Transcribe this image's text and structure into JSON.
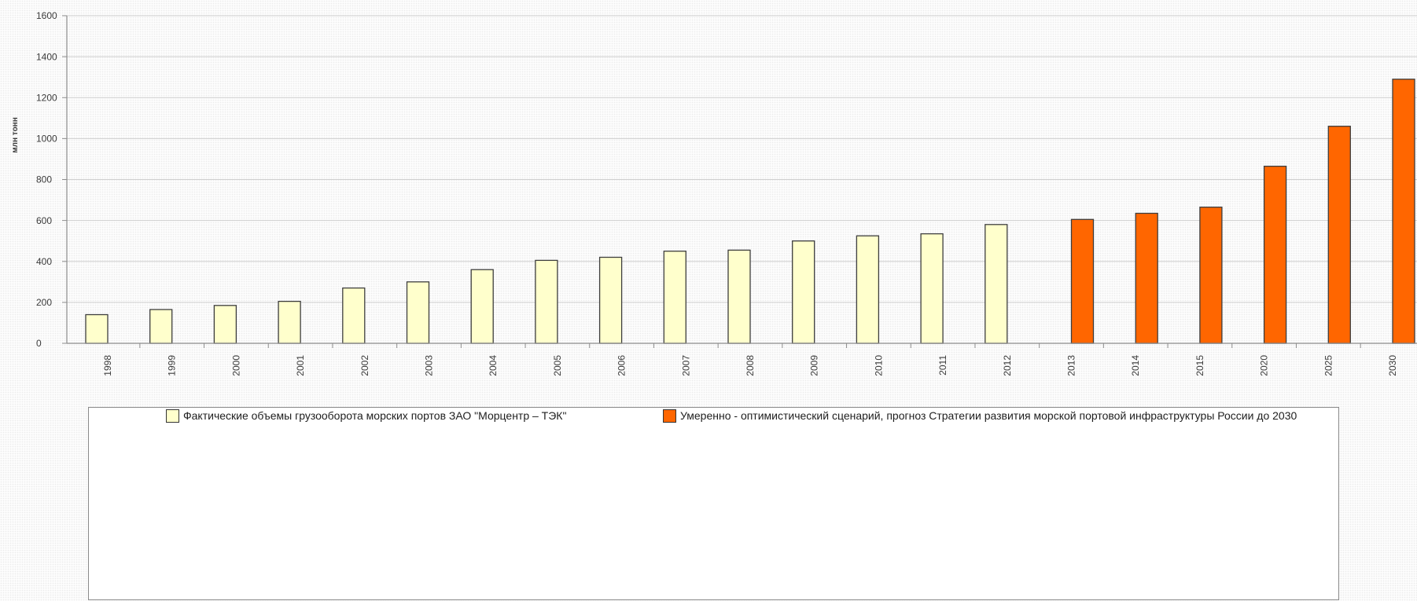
{
  "chart_data": {
    "type": "bar",
    "categories": [
      "1998",
      "1999",
      "2000",
      "2001",
      "2002",
      "2003",
      "2004",
      "2005",
      "2006",
      "2007",
      "2008",
      "2009",
      "2010",
      "2011",
      "2012",
      "2013",
      "2014",
      "2015",
      "2020",
      "2025",
      "2030"
    ],
    "series": [
      {
        "name": "Фактические объемы грузооборота морских портов ЗАО \"Морцентр – ТЭК\"",
        "color": "#FFFFCC",
        "values": [
          140,
          165,
          185,
          205,
          270,
          300,
          360,
          405,
          420,
          450,
          455,
          500,
          525,
          535,
          580,
          null,
          null,
          null,
          null,
          null,
          null
        ]
      },
      {
        "name": "Умеренно - оптимистический сценарий, прогноз Стратегии развития морской портовой инфраструктуры России до 2030",
        "color": "#FF6600",
        "values": [
          null,
          null,
          null,
          null,
          null,
          null,
          null,
          null,
          null,
          null,
          null,
          null,
          null,
          null,
          null,
          605,
          635,
          665,
          865,
          1060,
          1290
        ]
      }
    ],
    "ylabel": "млн тонн",
    "ylim": [
      0,
      1600
    ],
    "yticks": [
      0,
      200,
      400,
      600,
      800,
      1000,
      1200,
      1400,
      1600
    ],
    "grid": true,
    "legend": "bottom"
  }
}
